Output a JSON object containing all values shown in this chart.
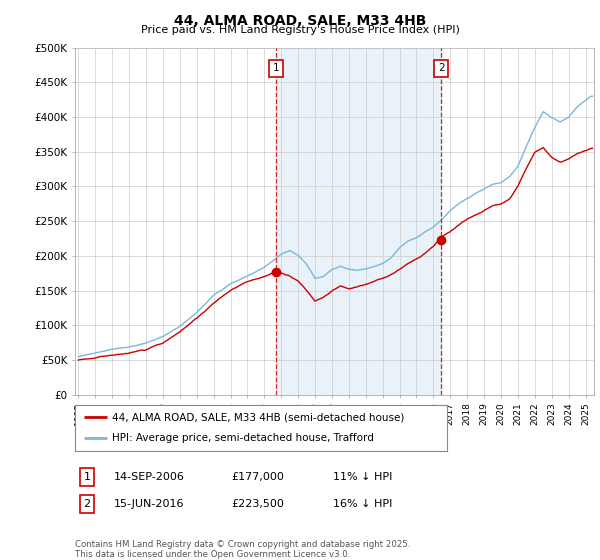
{
  "title": "44, ALMA ROAD, SALE, M33 4HB",
  "subtitle": "Price paid vs. HM Land Registry's House Price Index (HPI)",
  "ylabel_ticks": [
    "£0",
    "£50K",
    "£100K",
    "£150K",
    "£200K",
    "£250K",
    "£300K",
    "£350K",
    "£400K",
    "£450K",
    "£500K"
  ],
  "ytick_vals": [
    0,
    50000,
    100000,
    150000,
    200000,
    250000,
    300000,
    350000,
    400000,
    450000,
    500000
  ],
  "xlim": [
    1994.8,
    2025.5
  ],
  "ylim": [
    0,
    500000
  ],
  "marker1_x": 2006.71,
  "marker1_y": 177000,
  "marker1_label": "1",
  "marker1_date": "14-SEP-2006",
  "marker1_price": "£177,000",
  "marker1_hpi": "11% ↓ HPI",
  "marker2_x": 2016.46,
  "marker2_y": 223500,
  "marker2_label": "2",
  "marker2_date": "15-JUN-2016",
  "marker2_price": "£223,500",
  "marker2_hpi": "16% ↓ HPI",
  "legend_label_red": "44, ALMA ROAD, SALE, M33 4HB (semi-detached house)",
  "legend_label_blue": "HPI: Average price, semi-detached house, Trafford",
  "footer": "Contains HM Land Registry data © Crown copyright and database right 2025.\nThis data is licensed under the Open Government Licence v3.0.",
  "hpi_color": "#7ab8d9",
  "hpi_fill_color": "#daeaf4",
  "price_color": "#cc0000",
  "background_color": "#ffffff",
  "grid_color": "#cccccc"
}
